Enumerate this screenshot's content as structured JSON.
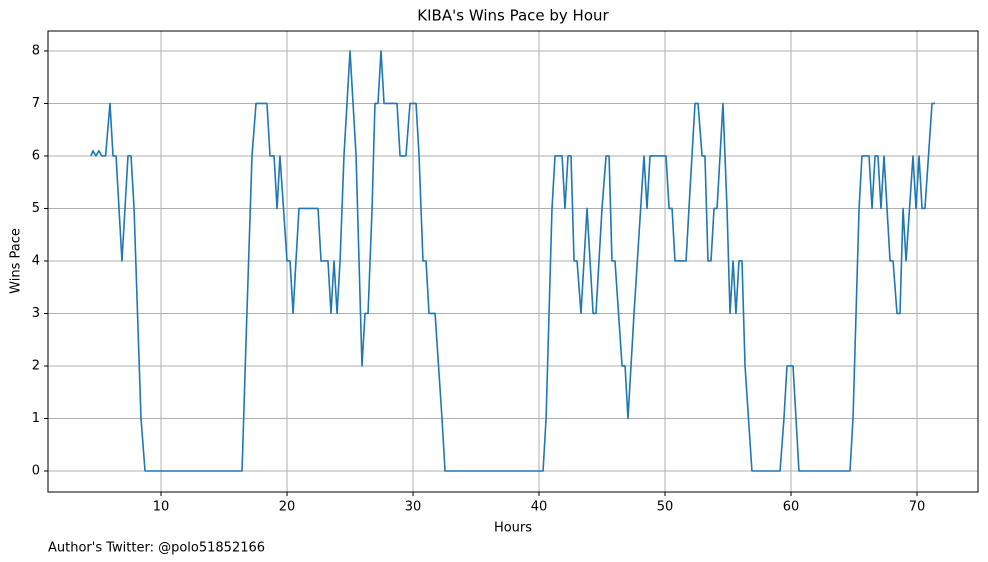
{
  "chart_data": {
    "type": "line",
    "title": "KIBA's Wins Pace by Hour",
    "x_label": "Hours",
    "y_label": "Wins Pace",
    "footnote": "Author's Twitter: @polo51852166",
    "x": [
      4.44,
      4.6,
      4.83,
      5.07,
      5.3,
      5.6,
      5.95,
      6.19,
      6.43,
      6.9,
      7.38,
      7.62,
      7.86,
      8.41,
      8.73,
      16.43,
      16.75,
      17.22,
      17.54,
      18.41,
      18.65,
      18.97,
      19.21,
      19.44,
      20.0,
      20.24,
      20.48,
      20.71,
      20.95,
      22.46,
      22.7,
      23.25,
      23.49,
      23.73,
      23.97,
      24.21,
      24.52,
      25.0,
      25.48,
      25.95,
      26.19,
      26.43,
      26.75,
      26.98,
      27.22,
      27.46,
      27.7,
      28.73,
      28.97,
      29.44,
      29.76,
      30.24,
      30.48,
      30.79,
      31.03,
      31.27,
      31.75,
      32.3,
      32.54,
      40.32,
      40.56,
      41.03,
      41.27,
      41.83,
      42.06,
      42.3,
      42.54,
      42.78,
      43.02,
      43.33,
      43.81,
      44.29,
      44.52,
      45.0,
      45.32,
      45.56,
      45.79,
      46.03,
      46.59,
      46.83,
      47.06,
      47.3,
      47.54,
      48.33,
      48.57,
      48.81,
      50.08,
      50.32,
      50.56,
      50.79,
      51.67,
      51.9,
      52.38,
      52.62,
      52.94,
      53.17,
      53.41,
      53.65,
      53.89,
      54.13,
      54.6,
      54.92,
      55.16,
      55.4,
      55.63,
      55.87,
      56.11,
      56.35,
      56.9,
      59.13,
      59.44,
      59.68,
      60.16,
      60.63,
      64.68,
      64.92,
      65.4,
      65.63,
      66.19,
      66.43,
      66.67,
      66.9,
      67.14,
      67.38,
      67.86,
      68.1,
      68.41,
      68.65,
      68.89,
      69.13,
      69.68,
      69.92,
      70.16,
      70.4,
      70.63,
      71.19,
      71.43
    ],
    "series": [
      {
        "name": "Wins Pace",
        "color": "#1f77b4",
        "values": [
          6,
          6.1,
          6,
          6.1,
          6,
          6,
          7,
          6,
          6,
          4,
          6,
          6,
          5,
          1,
          0,
          0,
          2.5,
          6,
          7,
          7,
          6,
          6,
          5,
          6,
          4,
          4,
          3,
          4,
          5,
          5,
          4,
          4,
          3,
          4,
          3,
          4,
          6,
          8,
          6,
          2,
          3,
          3,
          5,
          7,
          7,
          8,
          7,
          7,
          6,
          6,
          7,
          7,
          6,
          4,
          4,
          3,
          3,
          1,
          0,
          0,
          1,
          5,
          6,
          6,
          5,
          6,
          6,
          4,
          4,
          3,
          5,
          3,
          3,
          5,
          6,
          6,
          4,
          4,
          2,
          2,
          1,
          2,
          3,
          6,
          5,
          6,
          6,
          5,
          5,
          4,
          4,
          5,
          7,
          7,
          6,
          6,
          4,
          4,
          5,
          5,
          7,
          5,
          3,
          4,
          3,
          4,
          4,
          2,
          0,
          0,
          1,
          2,
          2,
          0,
          0,
          1,
          5,
          6,
          6,
          5,
          6,
          6,
          5,
          6,
          4,
          4,
          3,
          3,
          5,
          4,
          6,
          5,
          6,
          5,
          5,
          7,
          7
        ]
      }
    ],
    "xlim": [
      1.03,
      74.84
    ],
    "ylim": [
      -0.4,
      8.38
    ],
    "xticks": [
      10,
      20,
      30,
      40,
      50,
      60,
      70
    ],
    "yticks": [
      0,
      1,
      2,
      3,
      4,
      5,
      6,
      7,
      8
    ],
    "grid": true
  }
}
